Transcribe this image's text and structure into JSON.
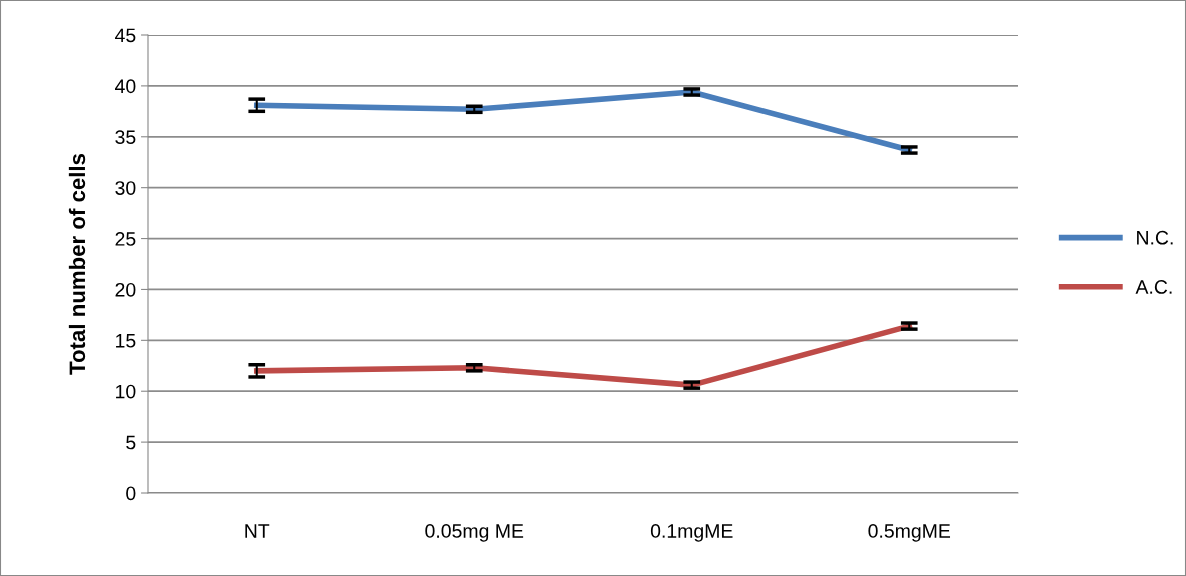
{
  "chart_data": {
    "type": "line",
    "ylabel": "Total number of cells",
    "categories": [
      "NT",
      "0.05mg ME",
      "0.1mgME",
      "0.5mgME"
    ],
    "series": [
      {
        "name": "N.C.",
        "color": "#4a7ebb",
        "values": [
          38.1,
          37.7,
          39.4,
          33.7
        ],
        "errors": [
          0.6,
          0.3,
          0.3,
          0.3
        ]
      },
      {
        "name": "A.C.",
        "color": "#be4b48",
        "values": [
          12.0,
          12.3,
          10.6,
          16.4
        ],
        "errors": [
          0.6,
          0.3,
          0.3,
          0.3
        ]
      }
    ],
    "ylim": [
      0,
      45
    ],
    "yticks": [
      0,
      5,
      10,
      15,
      20,
      25,
      30,
      35,
      40,
      45
    ],
    "grid": "y",
    "legend": "right",
    "marker": "none",
    "line_style": "solid"
  }
}
